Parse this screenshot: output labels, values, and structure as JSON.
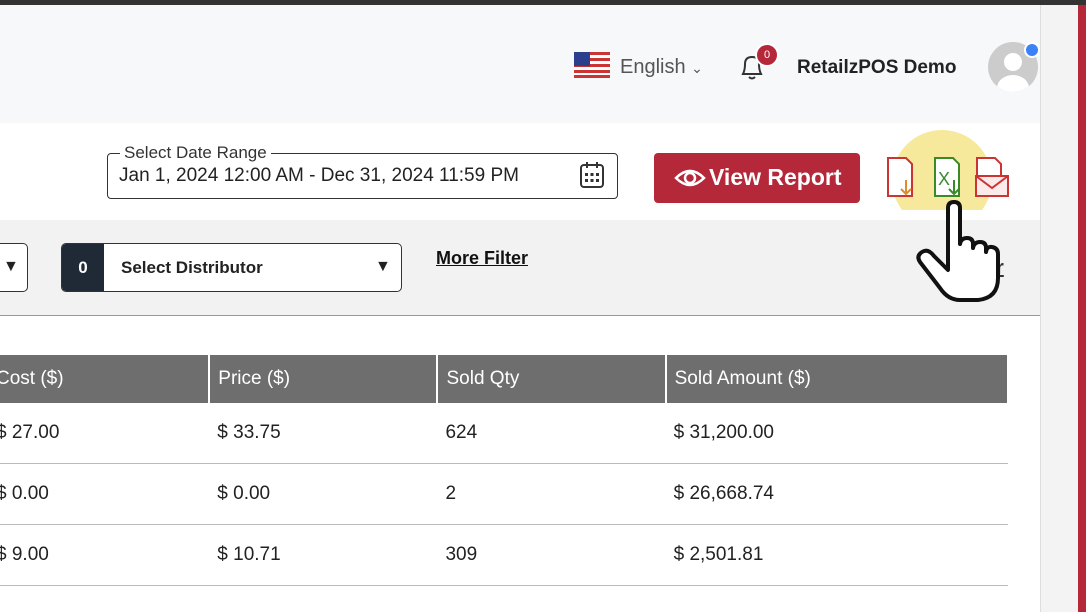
{
  "header": {
    "language": "English",
    "notification_count": "0",
    "user_name": "RetailzPOS Demo"
  },
  "toolbar": {
    "date_range_label": "Select Date Range",
    "date_range_value": "Jan 1, 2024 12:00 AM - Dec 31, 2024 11:59 PM",
    "view_report": "View Report"
  },
  "filters": {
    "distributor_count": "0",
    "distributor_placeholder": "Select Distributor",
    "more_filter": "More Filter",
    "clear_partial": "r"
  },
  "table": {
    "columns": [
      "Cost ($)",
      "Price ($)",
      "Sold Qty",
      "Sold Amount ($)"
    ],
    "rows": [
      [
        "$ 27.00",
        "$ 33.75",
        "624",
        "$ 31,200.00"
      ],
      [
        "$ 0.00",
        "$ 0.00",
        "2",
        "$ 26,668.74"
      ],
      [
        "$ 9.00",
        "$ 10.71",
        "309",
        "$ 2,501.81"
      ]
    ]
  }
}
